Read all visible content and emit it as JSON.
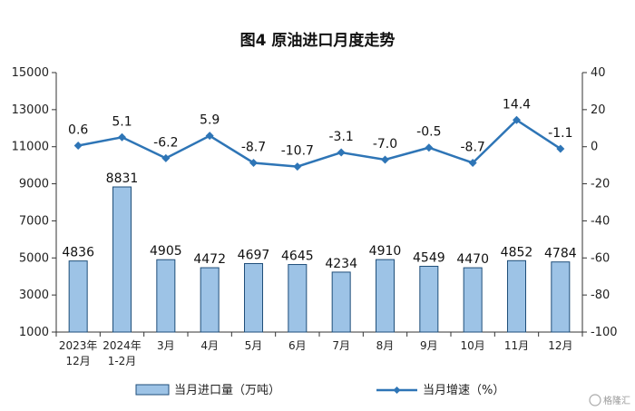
{
  "chart_data": {
    "type": "bar",
    "title": "图4  原油进口月度走势",
    "categories": [
      [
        "2023年",
        "12月"
      ],
      [
        "2024年",
        "1-2月"
      ],
      [
        "3月"
      ],
      [
        "4月"
      ],
      [
        "5月"
      ],
      [
        "6月"
      ],
      [
        "7月"
      ],
      [
        "8月"
      ],
      [
        "9月"
      ],
      [
        "10月"
      ],
      [
        "11月"
      ],
      [
        "12月"
      ]
    ],
    "series": [
      {
        "name": "当月进口量（万吨）",
        "type": "bar",
        "axis": "left",
        "values": [
          4836,
          8831,
          4905,
          4472,
          4697,
          4645,
          4234,
          4910,
          4549,
          4470,
          4852,
          4784
        ],
        "labels": [
          "4836",
          "8831",
          "4905",
          "4472",
          "4697",
          "4645",
          "4234",
          "4910",
          "4549",
          "4470",
          "4852",
          "4784"
        ]
      },
      {
        "name": "当月增速（%）",
        "type": "line",
        "axis": "right",
        "values": [
          0.6,
          5.1,
          -6.2,
          5.9,
          -8.7,
          -10.7,
          -3.1,
          -7.0,
          -0.5,
          -8.7,
          14.4,
          -1.1
        ],
        "labels": [
          "0.6",
          "5.1",
          "-6.2",
          "5.9",
          "-8.7",
          "-10.7",
          "-3.1",
          "-7.0",
          "-0.5",
          "-8.7",
          "14.4",
          "-1.1"
        ]
      }
    ],
    "y_left": {
      "min": 1000,
      "max": 15000,
      "ticks": [
        "1000",
        "3000",
        "5000",
        "7000",
        "9000",
        "11000",
        "13000",
        "15000"
      ]
    },
    "y_right": {
      "min": -100,
      "max": 40,
      "ticks": [
        "-100",
        "-80",
        "-60",
        "-40",
        "-20",
        "0",
        "20",
        "40"
      ]
    },
    "legend_position": "bottom",
    "grid": false,
    "colors": {
      "bar_fill": "#9dc3e6",
      "bar_stroke": "#1f4e79",
      "line": "#2e75b6"
    }
  },
  "watermark": "格隆汇"
}
